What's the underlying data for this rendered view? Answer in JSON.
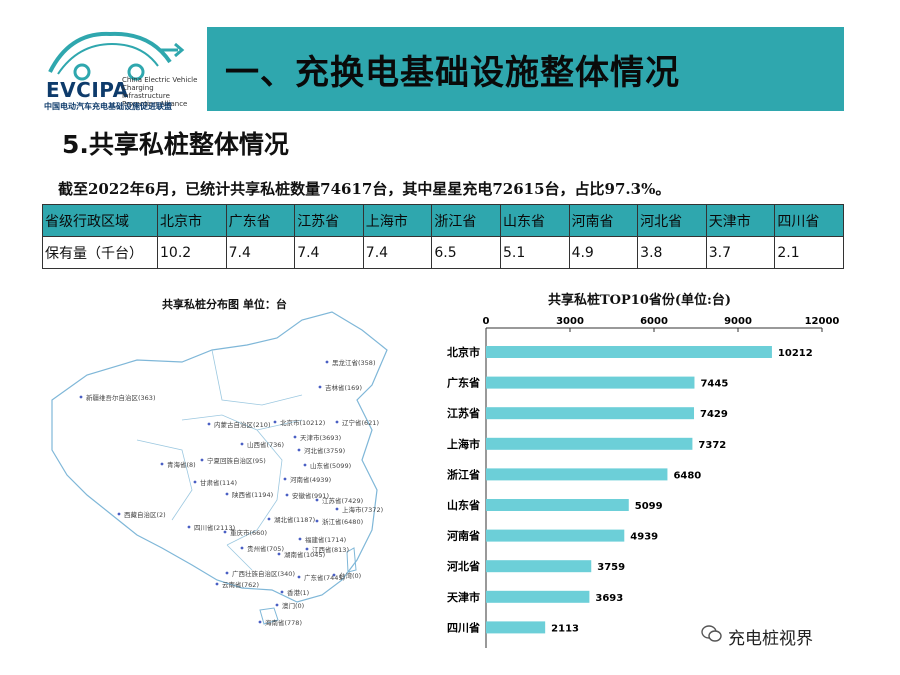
{
  "logo": {
    "name": "EVCIPA",
    "subtitle": "China Electric Vehicle Charging Infrastructure Promotion Alliance",
    "chinese_name": "中国电动汽车充电基础设施促进联盟"
  },
  "header": {
    "title": "一、充换电基础设施整体情况"
  },
  "section_title": "5.共享私桩整体情况",
  "summary": "截至2022年6月，已统计共享私桩数量74617台，其中星星充电72615台，占比97.3%。",
  "table": {
    "header_label": "省级行政区域",
    "row_label": "保有量（千台）",
    "regions": [
      "北京市",
      "广东省",
      "江苏省",
      "上海市",
      "浙江省",
      "山东省",
      "河南省",
      "河北省",
      "天津市",
      "四川省"
    ],
    "values": [
      "10.2",
      "7.4",
      "7.4",
      "7.4",
      "6.5",
      "5.1",
      "4.9",
      "3.8",
      "3.7",
      "2.1"
    ]
  },
  "map": {
    "title": "共享私桩分布图  单位：台",
    "labels": [
      "黑龙江省(358)",
      "吉林省(169)",
      "新疆维吾尔自治区(363)",
      "内蒙古自治区(210)",
      "北京市(10212)",
      "辽宁省(621)",
      "天津市(3693)",
      "山西省(736)",
      "河北省(3759)",
      "宁夏回族自治区(95)",
      "青海省(8)",
      "山东省(5099)",
      "甘肃省(114)",
      "河南省(4939)",
      "陕西省(1194)",
      "江苏省(7429)",
      "安徽省(991)",
      "上海市(7372)",
      "西藏自治区(2)",
      "湖北省(1187)",
      "浙江省(6480)",
      "四川省(2113)",
      "重庆市(660)",
      "福建省(1714)",
      "贵州省(705)",
      "湖南省(1045)",
      "江西省(813)",
      "云南省(762)",
      "广西壮族自治区(340)",
      "广东省(7445)",
      "台湾(0)",
      "香港(1)",
      "澳门(0)",
      "海南省(778)"
    ]
  },
  "chart_data": {
    "type": "bar",
    "orientation": "horizontal",
    "title": "共享私桩TOP10省份(单位:台)",
    "categories": [
      "北京市",
      "广东省",
      "江苏省",
      "上海市",
      "浙江省",
      "山东省",
      "河南省",
      "河北省",
      "天津市",
      "四川省"
    ],
    "values": [
      10212,
      7445,
      7429,
      7372,
      6480,
      5099,
      4939,
      3759,
      3693,
      2113
    ],
    "xlim": [
      0,
      12000
    ],
    "ticks": [
      "0",
      "3000",
      "6000",
      "9000",
      "12000"
    ],
    "bar_color": "#6ccfd8",
    "grid": false
  },
  "watermark": "充电桩视界",
  "colors": {
    "header": "#2fa7ae",
    "bar": "#6ccfd8",
    "logo_text": "#0e3b6b"
  }
}
